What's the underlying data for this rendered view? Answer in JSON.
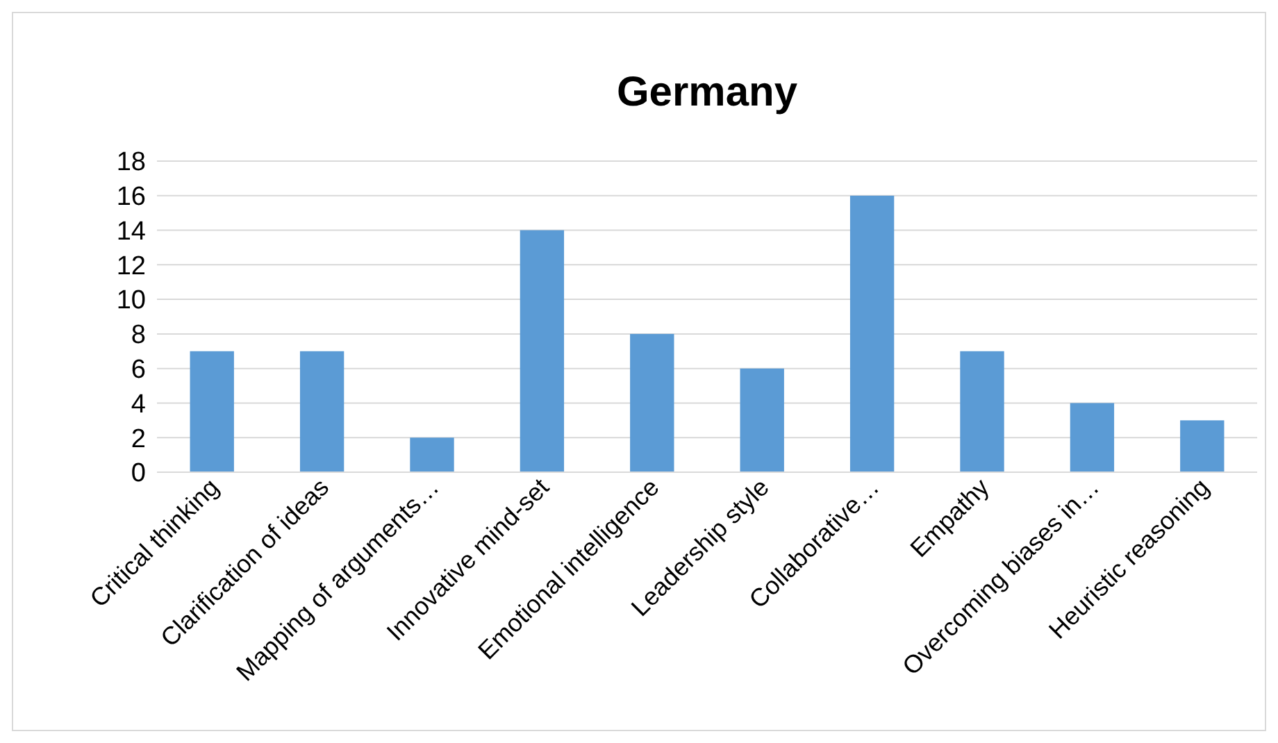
{
  "chart_data": {
    "type": "bar",
    "title": "Germany",
    "categories": [
      "Critical thinking",
      "Clarification of ideas",
      "Mapping of arguments…",
      "Innovative mind-set",
      "Emotional intelligence",
      "Leadership style",
      "Collaborative…",
      "Empathy",
      "Overcoming biases in…",
      "Heuristic reasoning"
    ],
    "values": [
      7,
      7,
      2,
      14,
      8,
      6,
      16,
      7,
      4,
      3
    ],
    "color": "#5b9bd5",
    "ylim": [
      0,
      18
    ],
    "yticks": [
      0,
      2,
      4,
      6,
      8,
      10,
      12,
      14,
      16,
      18
    ],
    "grid": "y"
  }
}
